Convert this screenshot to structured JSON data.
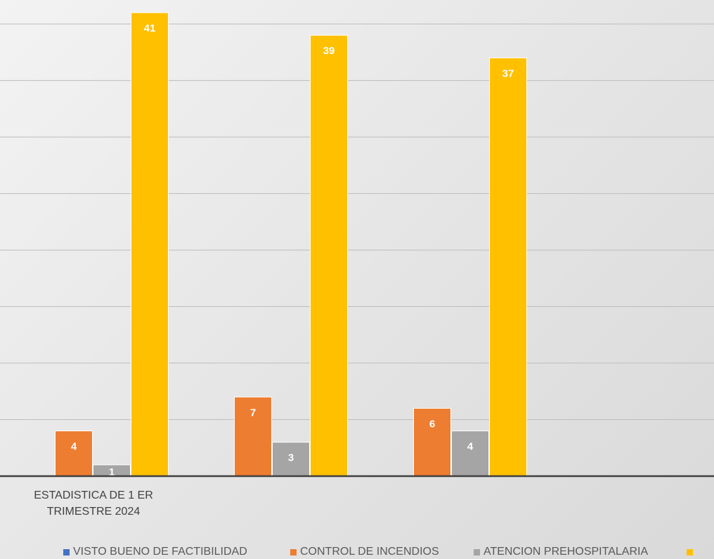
{
  "chart_data": {
    "type": "bar",
    "categories": [
      "ESTADISTICA DE 1 ER TRIMESTRE 2024",
      "",
      ""
    ],
    "series": [
      {
        "name": "VISTO BUENO DE FACTIBILIDAD",
        "values": [
          0,
          0,
          0
        ],
        "color": "#4472c4"
      },
      {
        "name": "CONTROL DE INCENDIOS",
        "values": [
          4,
          7,
          6
        ],
        "color": "#ed7d31"
      },
      {
        "name": "ATENCION PREHOSPITALARIA",
        "values": [
          1,
          3,
          4
        ],
        "color": "#a5a5a5"
      },
      {
        "name": "",
        "values": [
          41,
          39,
          37
        ],
        "color": "#ffc000"
      }
    ],
    "ylim": [
      0,
      41.5
    ],
    "grid": true,
    "gridline_step": 5,
    "legend": "bottom",
    "data_labels": true
  }
}
